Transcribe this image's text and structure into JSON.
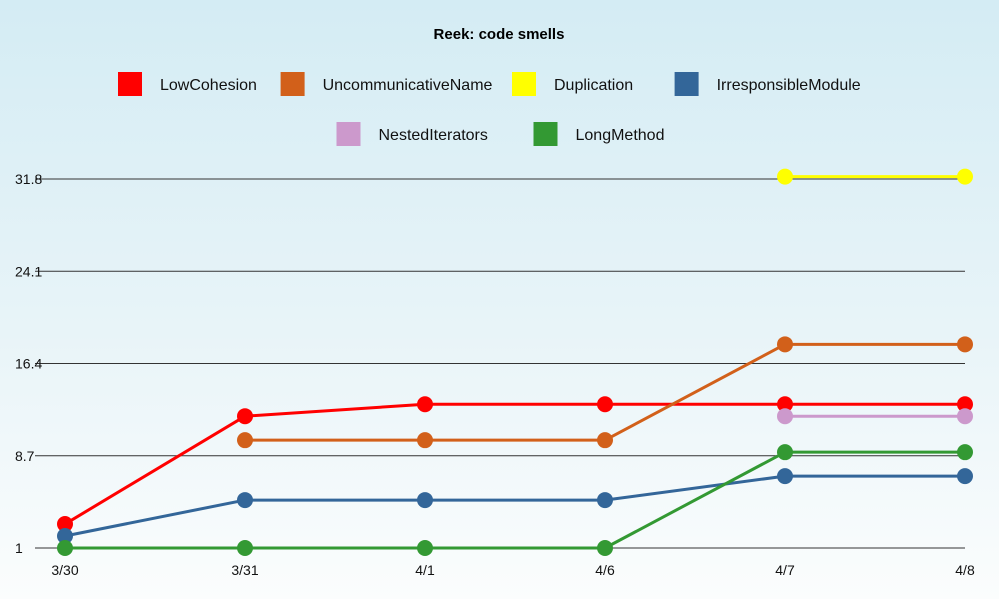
{
  "chart_data": {
    "type": "line",
    "title": "Reek: code smells",
    "categories": [
      "3/30",
      "3/31",
      "4/1",
      "4/6",
      "4/7",
      "4/8"
    ],
    "y_ticks": [
      "1",
      "8.7",
      "16.4",
      "24.1",
      "31.8"
    ],
    "ylim": [
      1,
      31.8
    ],
    "grid": true,
    "legend_position": "top",
    "series": [
      {
        "name": "LowCohesion",
        "color": "#ff0000",
        "values": [
          3,
          12,
          13,
          13,
          13,
          13
        ]
      },
      {
        "name": "UncommunicativeName",
        "color": "#d2601a",
        "values": [
          null,
          10,
          10,
          10,
          18,
          18
        ]
      },
      {
        "name": "Duplication",
        "color": "#ffff00",
        "values": [
          null,
          null,
          null,
          null,
          32,
          32
        ]
      },
      {
        "name": "IrresponsibleModule",
        "color": "#336699",
        "values": [
          2,
          5,
          5,
          5,
          7,
          7
        ]
      },
      {
        "name": "NestedIterators",
        "color": "#cc99cc",
        "values": [
          null,
          null,
          null,
          null,
          12,
          12
        ]
      },
      {
        "name": "LongMethod",
        "color": "#339933",
        "values": [
          1,
          1,
          1,
          1,
          9,
          9
        ]
      }
    ]
  }
}
